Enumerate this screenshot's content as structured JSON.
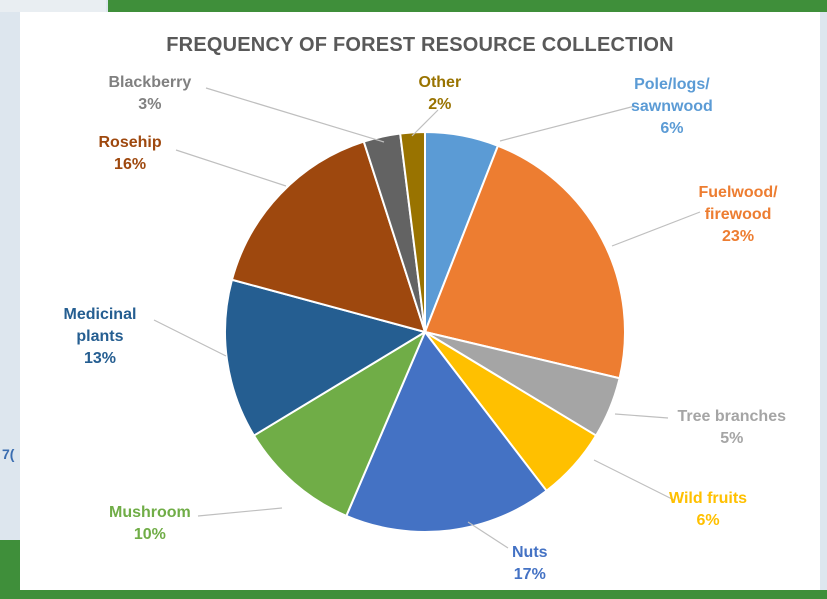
{
  "chart_data": {
    "type": "pie",
    "title": "FREQUENCY OF FOREST RESOURCE COLLECTION",
    "slices": [
      {
        "name": "Pole/logs/\nsawnwood",
        "value": 6,
        "label": "6%",
        "color": "#5b9bd5"
      },
      {
        "name": "Fuelwood/\nfirewood",
        "value": 23,
        "label": "23%",
        "color": "#ed7d31"
      },
      {
        "name": "Tree branches",
        "value": 5,
        "label": "5%",
        "color": "#a5a5a5"
      },
      {
        "name": "Wild fruits",
        "value": 6,
        "label": "6%",
        "color": "#ffc000"
      },
      {
        "name": "Nuts",
        "value": 17,
        "label": "17%",
        "color": "#4472c4"
      },
      {
        "name": "Mushroom",
        "value": 10,
        "label": "10%",
        "color": "#70ad47"
      },
      {
        "name": "Medicinal\nplants",
        "value": 13,
        "label": "13%",
        "color": "#255e91"
      },
      {
        "name": "Rosehip",
        "value": 16,
        "label": "16%",
        "color": "#9e480e"
      },
      {
        "name": "Blackberry",
        "value": 3,
        "label": "3%",
        "color": "#636363"
      },
      {
        "name": "Other",
        "value": 2,
        "label": "2%",
        "color": "#997300"
      }
    ],
    "label_colors": {
      "Pole/logs/\nsawnwood": "#5b9bd5",
      "Fuelwood/\nfirewood": "#ed7d31",
      "Tree branches": "#a5a5a5",
      "Wild fruits": "#ffc000",
      "Nuts": "#4472c4",
      "Mushroom": "#70ad47",
      "Medicinal\nplants": "#255e91",
      "Rosehip": "#9e480e",
      "Blackberry": "#808080",
      "Other": "#997300"
    }
  },
  "background_fragment": "7("
}
